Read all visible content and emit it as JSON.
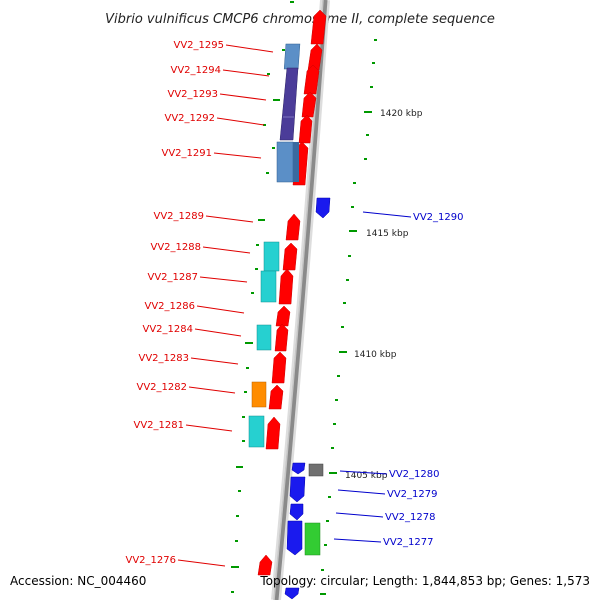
{
  "title": "Vibrio vulnificus CMCP6 chromosome II, complete sequence",
  "footer": {
    "accession": "Accession: NC_004460",
    "topology": "Topology: circular; Length: 1,844,853 bp; Genes: 1,573"
  },
  "colors": {
    "red_gene": "#ff0000",
    "blue_gene": "#1a1aee",
    "steel_blue": "#4682b4",
    "purple": "#4b3c99",
    "cyan": "#22cccc",
    "orange": "#ff8c00",
    "green": "#33cc33",
    "gray": "#707070",
    "label_red": "#e00000",
    "label_blue": "#0000cc",
    "tick_green": "#009900"
  },
  "kbp_marks": [
    "1420 kbp",
    "1415 kbp",
    "1410 kbp",
    "1405 kbp"
  ],
  "genes_left": [
    "VV2_1295",
    "VV2_1294",
    "VV2_1293",
    "VV2_1292",
    "VV2_1291",
    "VV2_1289",
    "VV2_1288",
    "VV2_1287",
    "VV2_1286",
    "VV2_1284",
    "VV2_1283",
    "VV2_1282",
    "VV2_1281",
    "VV2_1276"
  ],
  "genes_right": [
    "VV2_1290",
    "VV2_1280",
    "VV2_1279",
    "VV2_1278",
    "VV2_1277"
  ]
}
